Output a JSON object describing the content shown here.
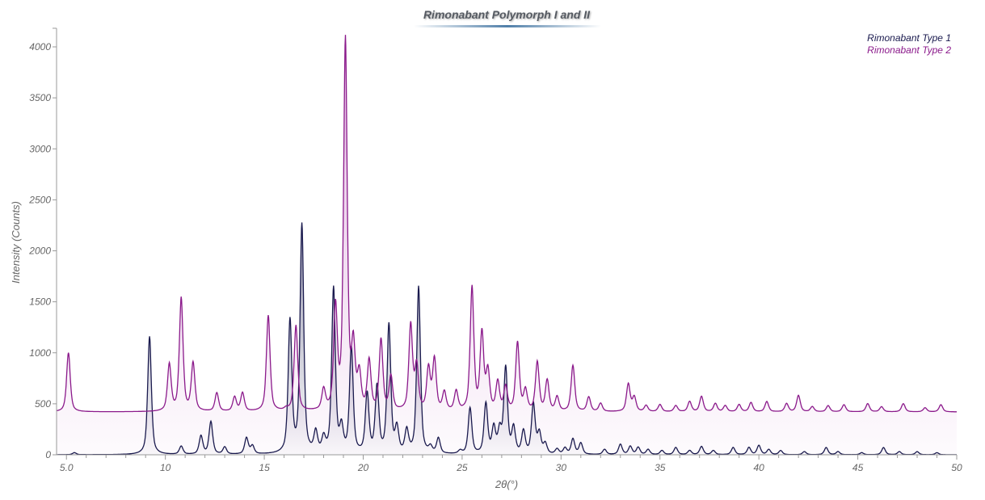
{
  "chart": {
    "title": "Rimonabant Polymorph I and II",
    "xlabel": "2θ(°)",
    "ylabel": "Intensity (Counts)",
    "legend": [
      {
        "label": "Rimonabant Type 1",
        "color": "#1a1a4e"
      },
      {
        "label": "Rimonabant Type 2",
        "color": "#8b1a8b"
      }
    ]
  },
  "chart_data": {
    "type": "line",
    "title": "Rimonabant Polymorph I and II",
    "xlabel": "2θ(°)",
    "ylabel": "Intensity (Counts)",
    "xlim": [
      4.5,
      50
    ],
    "ylim": [
      0,
      4200
    ],
    "x_ticks": [
      5.0,
      10,
      15,
      20,
      25,
      30,
      35,
      40,
      45,
      50
    ],
    "x_tick_labels": [
      "5.0",
      "10",
      "15",
      "20",
      "25",
      "30",
      "35",
      "40",
      "45",
      "50"
    ],
    "y_ticks": [
      0,
      500,
      1000,
      1500,
      2000,
      2500,
      3000,
      3500,
      4000
    ],
    "grid": false,
    "legend_position": "top-right",
    "series": [
      {
        "name": "Rimonabant Type 1",
        "color": "#1a1a4e",
        "baseline": 0,
        "peaks_2theta_intensity": [
          [
            5.4,
            20
          ],
          [
            9.2,
            1160
          ],
          [
            10.8,
            80
          ],
          [
            11.8,
            180
          ],
          [
            12.3,
            320
          ],
          [
            13.0,
            70
          ],
          [
            14.1,
            160
          ],
          [
            14.4,
            80
          ],
          [
            16.3,
            1300
          ],
          [
            16.9,
            2240
          ],
          [
            17.6,
            200
          ],
          [
            18.0,
            140
          ],
          [
            18.5,
            1620
          ],
          [
            18.9,
            240
          ],
          [
            19.4,
            1030
          ],
          [
            20.2,
            580
          ],
          [
            20.7,
            650
          ],
          [
            21.3,
            1260
          ],
          [
            21.7,
            240
          ],
          [
            22.2,
            220
          ],
          [
            22.8,
            1640
          ],
          [
            23.4,
            60
          ],
          [
            23.8,
            150
          ],
          [
            24.9,
            30
          ],
          [
            25.4,
            450
          ],
          [
            26.2,
            490
          ],
          [
            26.6,
            250
          ],
          [
            26.9,
            220
          ],
          [
            27.2,
            840
          ],
          [
            27.6,
            250
          ],
          [
            28.1,
            220
          ],
          [
            28.6,
            490
          ],
          [
            28.9,
            200
          ],
          [
            29.2,
            100
          ],
          [
            29.8,
            50
          ],
          [
            30.2,
            60
          ],
          [
            30.6,
            150
          ],
          [
            31.0,
            110
          ],
          [
            32.2,
            50
          ],
          [
            33.0,
            100
          ],
          [
            33.5,
            80
          ],
          [
            33.9,
            70
          ],
          [
            34.4,
            50
          ],
          [
            35.1,
            40
          ],
          [
            35.8,
            70
          ],
          [
            36.5,
            40
          ],
          [
            37.1,
            80
          ],
          [
            37.7,
            40
          ],
          [
            38.7,
            70
          ],
          [
            39.5,
            70
          ],
          [
            40.0,
            90
          ],
          [
            40.5,
            50
          ],
          [
            41.1,
            40
          ],
          [
            42.3,
            30
          ],
          [
            43.4,
            70
          ],
          [
            44.0,
            30
          ],
          [
            45.2,
            20
          ],
          [
            46.3,
            70
          ],
          [
            47.1,
            30
          ],
          [
            48.0,
            30
          ],
          [
            49.0,
            20
          ]
        ]
      },
      {
        "name": "Rimonabant Type 2",
        "color": "#8b1a8b",
        "baseline": 420,
        "peaks_2theta_intensity": [
          [
            5.1,
            1000
          ],
          [
            10.2,
            880
          ],
          [
            10.8,
            1530
          ],
          [
            11.4,
            890
          ],
          [
            12.6,
            600
          ],
          [
            13.5,
            560
          ],
          [
            13.9,
            600
          ],
          [
            15.2,
            1360
          ],
          [
            16.1,
            440
          ],
          [
            16.6,
            1260
          ],
          [
            18.0,
            620
          ],
          [
            18.6,
            1410
          ],
          [
            19.1,
            4050
          ],
          [
            19.5,
            1020
          ],
          [
            19.8,
            760
          ],
          [
            20.3,
            900
          ],
          [
            20.9,
            1110
          ],
          [
            21.4,
            750
          ],
          [
            22.4,
            1260
          ],
          [
            22.7,
            850
          ],
          [
            23.3,
            830
          ],
          [
            23.6,
            920
          ],
          [
            24.1,
            600
          ],
          [
            24.7,
            610
          ],
          [
            25.5,
            1630
          ],
          [
            26.0,
            1170
          ],
          [
            26.3,
            800
          ],
          [
            26.8,
            700
          ],
          [
            27.2,
            650
          ],
          [
            27.8,
            1090
          ],
          [
            28.2,
            620
          ],
          [
            28.8,
            900
          ],
          [
            29.3,
            720
          ],
          [
            29.8,
            560
          ],
          [
            30.6,
            870
          ],
          [
            31.4,
            560
          ],
          [
            32.0,
            500
          ],
          [
            33.4,
            690
          ],
          [
            33.7,
            560
          ],
          [
            34.3,
            480
          ],
          [
            35.0,
            490
          ],
          [
            35.8,
            480
          ],
          [
            36.5,
            520
          ],
          [
            37.1,
            570
          ],
          [
            37.8,
            500
          ],
          [
            38.3,
            480
          ],
          [
            39.0,
            490
          ],
          [
            39.6,
            510
          ],
          [
            40.4,
            520
          ],
          [
            41.4,
            500
          ],
          [
            42.0,
            580
          ],
          [
            42.7,
            470
          ],
          [
            43.5,
            480
          ],
          [
            44.3,
            490
          ],
          [
            45.5,
            500
          ],
          [
            46.2,
            470
          ],
          [
            47.3,
            500
          ],
          [
            48.4,
            460
          ],
          [
            49.2,
            490
          ]
        ]
      }
    ]
  }
}
